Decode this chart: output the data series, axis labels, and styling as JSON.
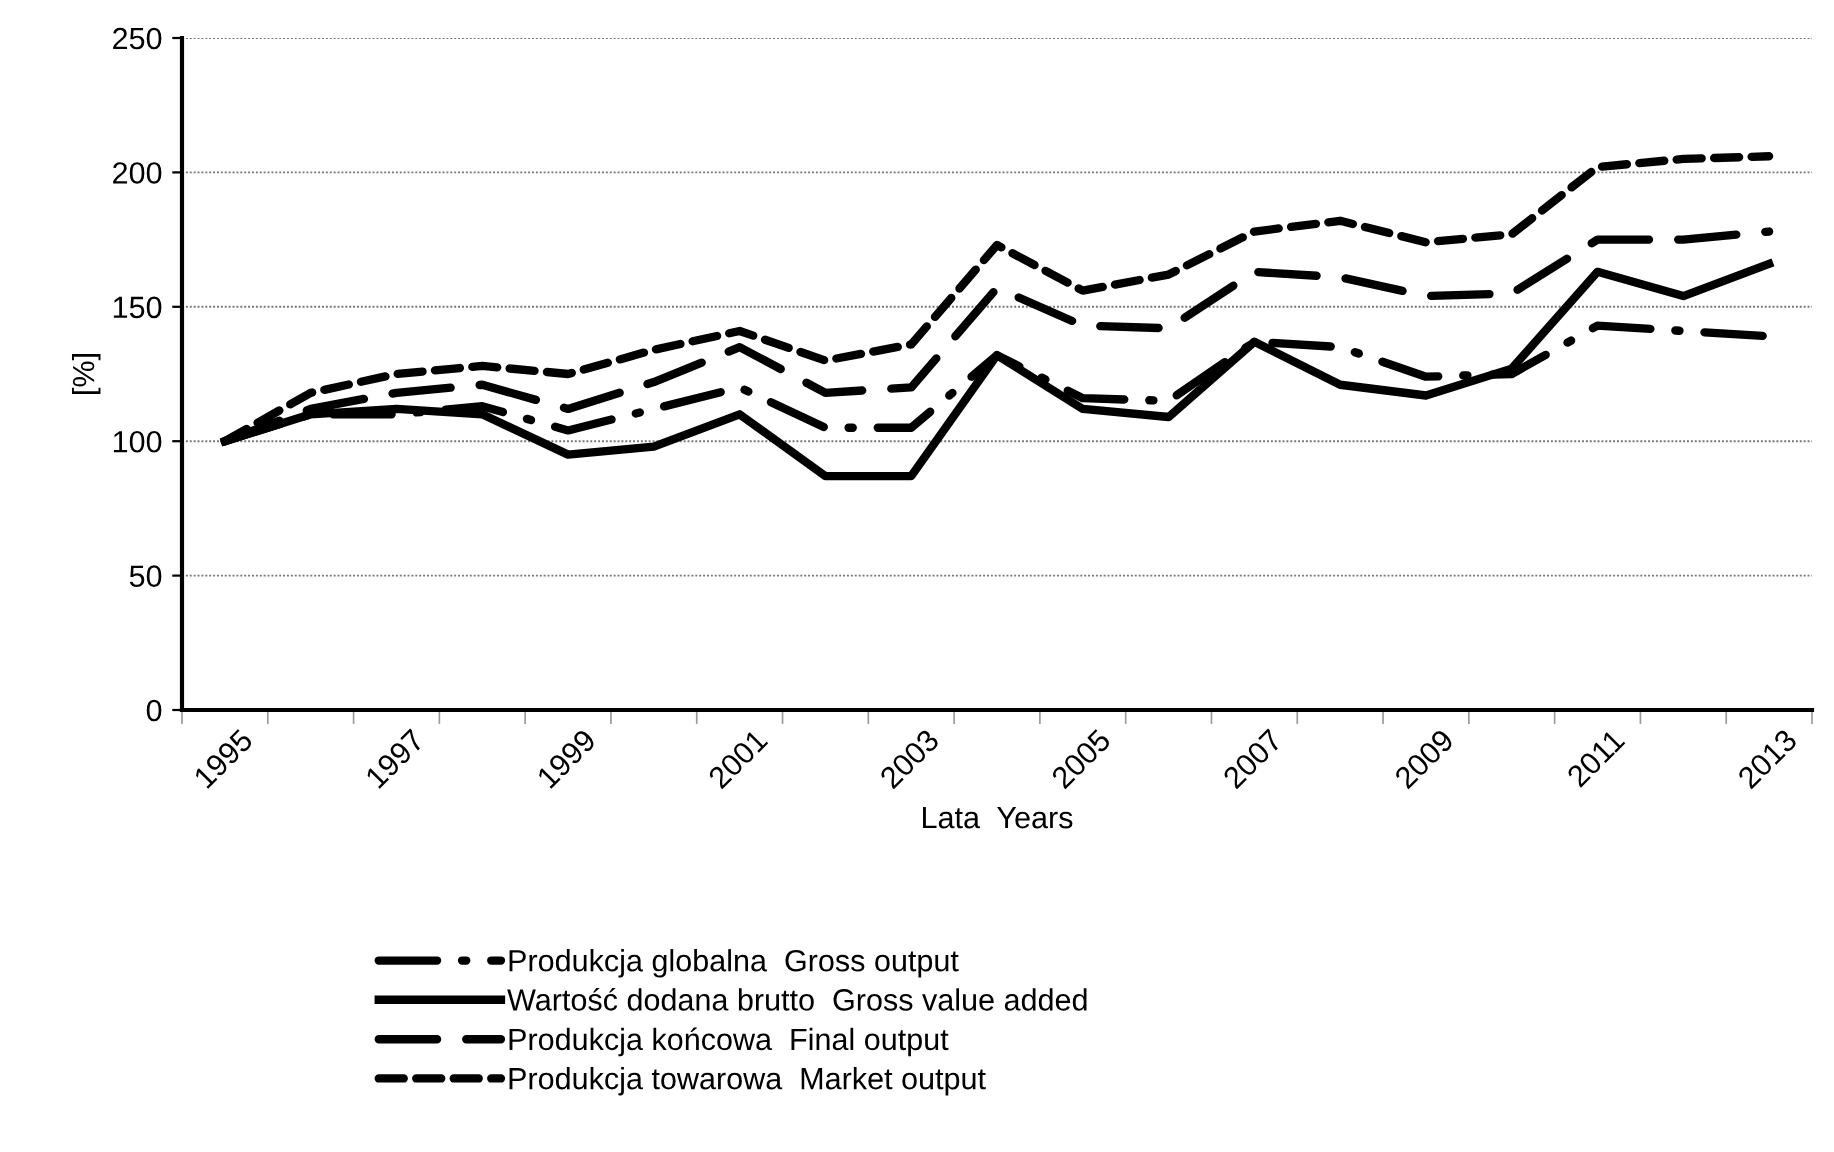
{
  "chart_data": {
    "type": "line",
    "xlabel": "Lata  Years",
    "ylabel": "[%]",
    "categories": [
      "1995",
      null,
      "1997",
      null,
      "1999",
      null,
      "2001",
      null,
      "2003",
      null,
      "2005",
      null,
      "2007",
      null,
      "2009",
      null,
      "2011",
      null,
      "2013"
    ],
    "series": [
      {
        "name": "Produkcja globalna  Gross output",
        "color": "#000000",
        "line_style": "dashdot",
        "values": [
          100,
          110,
          110,
          113,
          104,
          112,
          120,
          105,
          105,
          132,
          116,
          115,
          137,
          135,
          124,
          125,
          143,
          141,
          139
        ]
      },
      {
        "name": "Wartość dodana brutto  Gross value added",
        "color": "#000000",
        "line_style": "solid",
        "values": [
          100,
          110,
          112,
          110,
          95,
          98,
          110,
          87,
          87,
          132,
          112,
          109,
          137,
          121,
          117,
          127,
          163,
          154,
          166
        ]
      },
      {
        "name": "Produkcja końcowa  Final output",
        "color": "#000000",
        "line_style": "longdash",
        "values": [
          100,
          112,
          118,
          121,
          112,
          122,
          135,
          118,
          120,
          157,
          143,
          142,
          163,
          161,
          154,
          155,
          175,
          175,
          178
        ]
      },
      {
        "name": "Produkcja towarowa  Market output",
        "color": "#000000",
        "line_style": "dashed",
        "values": [
          100,
          118,
          125,
          128,
          125,
          134,
          141,
          130,
          136,
          173,
          156,
          162,
          178,
          182,
          174,
          177,
          202,
          205,
          206
        ]
      }
    ],
    "ylim": [
      0,
      250
    ],
    "yticks": [
      0,
      50,
      100,
      150,
      200,
      250
    ],
    "grid": "y",
    "legend": "bottom",
    "marker": "none"
  }
}
